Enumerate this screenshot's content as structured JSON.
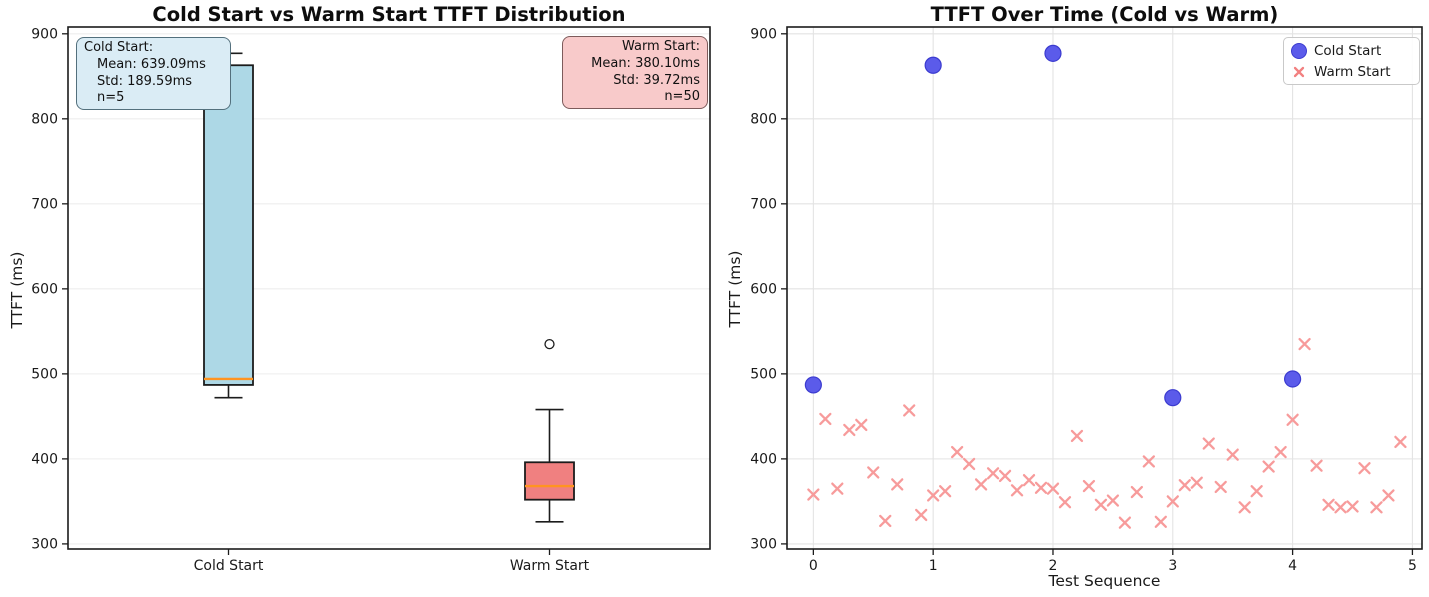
{
  "chart_data": [
    {
      "type": "boxplot",
      "title": "Cold Start vs Warm Start TTFT Distribution",
      "ylabel": "TTFT (ms)",
      "categories": [
        "Cold Start",
        "Warm Start"
      ],
      "yticks": [
        900,
        800,
        700,
        600,
        500,
        400,
        300
      ],
      "ylim": [
        294,
        908
      ],
      "grid": "horizontal",
      "median_color": "#ff9421",
      "box_edge_color": "#1c1c1c",
      "boxes": [
        {
          "label": "Cold Start",
          "fill": "#add8e6",
          "whisker_low": 472,
          "q1": 487,
          "median": 494,
          "q3": 863,
          "whisker_high": 877,
          "outliers": []
        },
        {
          "label": "Warm Start",
          "fill": "#f08080",
          "whisker_low": 326,
          "q1": 352,
          "median": 368,
          "q3": 396,
          "whisker_high": 458,
          "outliers": [
            535
          ]
        }
      ],
      "stat_boxes": [
        {
          "lines": [
            "Cold Start:",
            "Mean: 639.09ms",
            "Std: 189.59ms",
            "n=5"
          ],
          "align": "left",
          "fill": "#daecf5",
          "border": "#53707d"
        },
        {
          "lines": [
            "Warm Start:",
            "Mean: 380.10ms",
            "Std: 39.72ms",
            "n=50"
          ],
          "align": "right",
          "fill": "#f8caca",
          "border": "#7d5b5b"
        }
      ]
    },
    {
      "type": "scatter",
      "title": "TTFT Over Time (Cold vs Warm)",
      "xlabel": "Test Sequence",
      "ylabel": "TTFT (ms)",
      "xticks": [
        0,
        1,
        2,
        3,
        4,
        5
      ],
      "yticks": [
        900,
        800,
        700,
        600,
        500,
        400,
        300
      ],
      "xlim": [
        -0.22,
        5.08
      ],
      "ylim": [
        294,
        908
      ],
      "grid": "both",
      "legend": {
        "position": "upper right",
        "items": [
          {
            "label": "Cold Start",
            "marker": "circle",
            "fill": "#5b5bea",
            "edge": "#3b3bcf"
          },
          {
            "label": "Warm Start",
            "marker": "x",
            "color": "#f28080"
          }
        ]
      },
      "series": [
        {
          "name": "Cold Start",
          "marker": "circle",
          "fill": "#5b5bea",
          "edge": "#3b3bcf",
          "size": 8,
          "x": [
            0,
            1,
            2,
            3,
            4
          ],
          "y": [
            487,
            863,
            877,
            472,
            494
          ]
        },
        {
          "name": "Warm Start",
          "marker": "x",
          "color": "#f79b9b",
          "size": 5,
          "x": [
            0.0,
            0.1,
            0.2,
            0.3,
            0.4,
            0.5,
            0.6,
            0.7,
            0.8,
            0.9,
            1.0,
            1.1,
            1.2,
            1.3,
            1.4,
            1.5,
            1.6,
            1.7,
            1.8,
            1.9,
            2.0,
            2.1,
            2.2,
            2.3,
            2.4,
            2.5,
            2.6,
            2.7,
            2.8,
            2.9,
            3.0,
            3.1,
            3.2,
            3.3,
            3.4,
            3.5,
            3.6,
            3.7,
            3.8,
            3.9,
            4.0,
            4.1,
            4.2,
            4.3,
            4.4,
            4.5,
            4.6,
            4.7,
            4.8,
            4.9
          ],
          "y": [
            358,
            447,
            365,
            434,
            440,
            384,
            327,
            370,
            457,
            334,
            357,
            362,
            408,
            394,
            370,
            383,
            380,
            363,
            375,
            366,
            365,
            349,
            427,
            368,
            346,
            351,
            325,
            361,
            397,
            326,
            350,
            369,
            372,
            418,
            367,
            405,
            343,
            362,
            391,
            408,
            446,
            535,
            392,
            346,
            343,
            344,
            389,
            343,
            357,
            420
          ]
        }
      ]
    }
  ]
}
